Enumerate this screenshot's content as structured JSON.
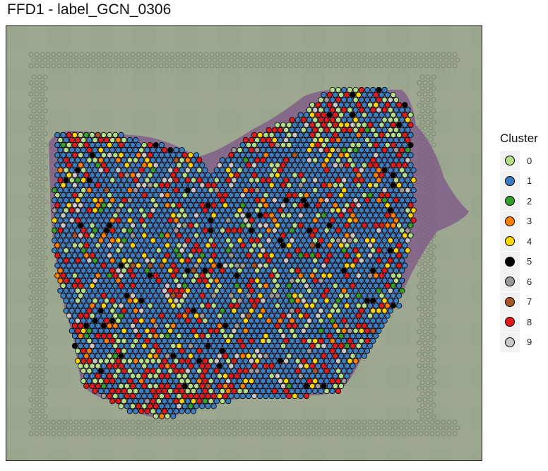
{
  "chart_data": {
    "type": "scatter",
    "title": "FFD1 - label_GCN_0306",
    "xlabel": "",
    "ylabel": "",
    "grid": false,
    "background": "H&E tissue section image with spatial transcriptomics spot array",
    "legend": {
      "title": "Cluster",
      "position": "right",
      "entries": [
        {
          "label": "0",
          "color": "#b2df8a"
        },
        {
          "label": "1",
          "color": "#3a7ec1"
        },
        {
          "label": "2",
          "color": "#33a02c"
        },
        {
          "label": "3",
          "color": "#ff7f00"
        },
        {
          "label": "4",
          "color": "#ffd700"
        },
        {
          "label": "5",
          "color": "#000000"
        },
        {
          "label": "6",
          "color": "#999999"
        },
        {
          "label": "7",
          "color": "#a65628"
        },
        {
          "label": "8",
          "color": "#e31a1c"
        },
        {
          "label": "9",
          "color": "#c8c8c8"
        }
      ]
    },
    "cluster_share_estimate": {
      "0": 0.08,
      "1": 0.62,
      "2": 0.02,
      "3": 0.035,
      "4": 0.05,
      "5": 0.025,
      "6": 0.02,
      "7": 0.003,
      "8": 0.1,
      "9": 0.047
    }
  }
}
